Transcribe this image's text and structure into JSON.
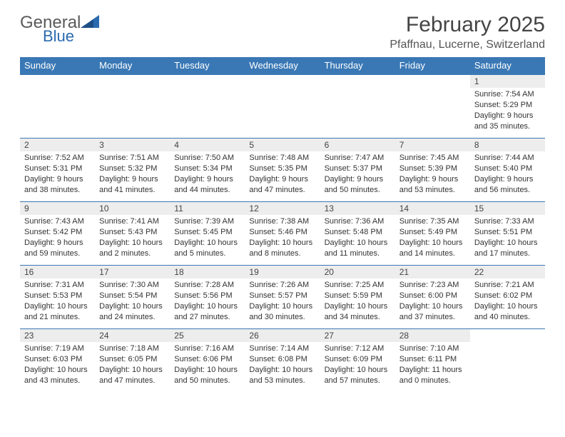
{
  "brand": {
    "part1": "General",
    "part2": "Blue"
  },
  "title": {
    "month": "February 2025",
    "location": "Pfaffnau, Lucerne, Switzerland"
  },
  "colors": {
    "header_bg": "#3a78b5",
    "header_fg": "#ffffff",
    "daynum_bg": "#ededed",
    "text": "#333333",
    "rule": "#3a78b5",
    "brand_gray": "#5a5a5a",
    "brand_blue": "#2a6bb0"
  },
  "calendar": {
    "type": "calendar-table",
    "columns": [
      "Sunday",
      "Monday",
      "Tuesday",
      "Wednesday",
      "Thursday",
      "Friday",
      "Saturday"
    ],
    "font_size_header": 13,
    "font_size_day": 12,
    "font_size_info": 11,
    "weeks": [
      [
        null,
        null,
        null,
        null,
        null,
        null,
        {
          "n": "1",
          "sr": "Sunrise: 7:54 AM",
          "ss": "Sunset: 5:29 PM",
          "dl": "Daylight: 9 hours and 35 minutes."
        }
      ],
      [
        {
          "n": "2",
          "sr": "Sunrise: 7:52 AM",
          "ss": "Sunset: 5:31 PM",
          "dl": "Daylight: 9 hours and 38 minutes."
        },
        {
          "n": "3",
          "sr": "Sunrise: 7:51 AM",
          "ss": "Sunset: 5:32 PM",
          "dl": "Daylight: 9 hours and 41 minutes."
        },
        {
          "n": "4",
          "sr": "Sunrise: 7:50 AM",
          "ss": "Sunset: 5:34 PM",
          "dl": "Daylight: 9 hours and 44 minutes."
        },
        {
          "n": "5",
          "sr": "Sunrise: 7:48 AM",
          "ss": "Sunset: 5:35 PM",
          "dl": "Daylight: 9 hours and 47 minutes."
        },
        {
          "n": "6",
          "sr": "Sunrise: 7:47 AM",
          "ss": "Sunset: 5:37 PM",
          "dl": "Daylight: 9 hours and 50 minutes."
        },
        {
          "n": "7",
          "sr": "Sunrise: 7:45 AM",
          "ss": "Sunset: 5:39 PM",
          "dl": "Daylight: 9 hours and 53 minutes."
        },
        {
          "n": "8",
          "sr": "Sunrise: 7:44 AM",
          "ss": "Sunset: 5:40 PM",
          "dl": "Daylight: 9 hours and 56 minutes."
        }
      ],
      [
        {
          "n": "9",
          "sr": "Sunrise: 7:43 AM",
          "ss": "Sunset: 5:42 PM",
          "dl": "Daylight: 9 hours and 59 minutes."
        },
        {
          "n": "10",
          "sr": "Sunrise: 7:41 AM",
          "ss": "Sunset: 5:43 PM",
          "dl": "Daylight: 10 hours and 2 minutes."
        },
        {
          "n": "11",
          "sr": "Sunrise: 7:39 AM",
          "ss": "Sunset: 5:45 PM",
          "dl": "Daylight: 10 hours and 5 minutes."
        },
        {
          "n": "12",
          "sr": "Sunrise: 7:38 AM",
          "ss": "Sunset: 5:46 PM",
          "dl": "Daylight: 10 hours and 8 minutes."
        },
        {
          "n": "13",
          "sr": "Sunrise: 7:36 AM",
          "ss": "Sunset: 5:48 PM",
          "dl": "Daylight: 10 hours and 11 minutes."
        },
        {
          "n": "14",
          "sr": "Sunrise: 7:35 AM",
          "ss": "Sunset: 5:49 PM",
          "dl": "Daylight: 10 hours and 14 minutes."
        },
        {
          "n": "15",
          "sr": "Sunrise: 7:33 AM",
          "ss": "Sunset: 5:51 PM",
          "dl": "Daylight: 10 hours and 17 minutes."
        }
      ],
      [
        {
          "n": "16",
          "sr": "Sunrise: 7:31 AM",
          "ss": "Sunset: 5:53 PM",
          "dl": "Daylight: 10 hours and 21 minutes."
        },
        {
          "n": "17",
          "sr": "Sunrise: 7:30 AM",
          "ss": "Sunset: 5:54 PM",
          "dl": "Daylight: 10 hours and 24 minutes."
        },
        {
          "n": "18",
          "sr": "Sunrise: 7:28 AM",
          "ss": "Sunset: 5:56 PM",
          "dl": "Daylight: 10 hours and 27 minutes."
        },
        {
          "n": "19",
          "sr": "Sunrise: 7:26 AM",
          "ss": "Sunset: 5:57 PM",
          "dl": "Daylight: 10 hours and 30 minutes."
        },
        {
          "n": "20",
          "sr": "Sunrise: 7:25 AM",
          "ss": "Sunset: 5:59 PM",
          "dl": "Daylight: 10 hours and 34 minutes."
        },
        {
          "n": "21",
          "sr": "Sunrise: 7:23 AM",
          "ss": "Sunset: 6:00 PM",
          "dl": "Daylight: 10 hours and 37 minutes."
        },
        {
          "n": "22",
          "sr": "Sunrise: 7:21 AM",
          "ss": "Sunset: 6:02 PM",
          "dl": "Daylight: 10 hours and 40 minutes."
        }
      ],
      [
        {
          "n": "23",
          "sr": "Sunrise: 7:19 AM",
          "ss": "Sunset: 6:03 PM",
          "dl": "Daylight: 10 hours and 43 minutes."
        },
        {
          "n": "24",
          "sr": "Sunrise: 7:18 AM",
          "ss": "Sunset: 6:05 PM",
          "dl": "Daylight: 10 hours and 47 minutes."
        },
        {
          "n": "25",
          "sr": "Sunrise: 7:16 AM",
          "ss": "Sunset: 6:06 PM",
          "dl": "Daylight: 10 hours and 50 minutes."
        },
        {
          "n": "26",
          "sr": "Sunrise: 7:14 AM",
          "ss": "Sunset: 6:08 PM",
          "dl": "Daylight: 10 hours and 53 minutes."
        },
        {
          "n": "27",
          "sr": "Sunrise: 7:12 AM",
          "ss": "Sunset: 6:09 PM",
          "dl": "Daylight: 10 hours and 57 minutes."
        },
        {
          "n": "28",
          "sr": "Sunrise: 7:10 AM",
          "ss": "Sunset: 6:11 PM",
          "dl": "Daylight: 11 hours and 0 minutes."
        },
        null
      ]
    ]
  }
}
